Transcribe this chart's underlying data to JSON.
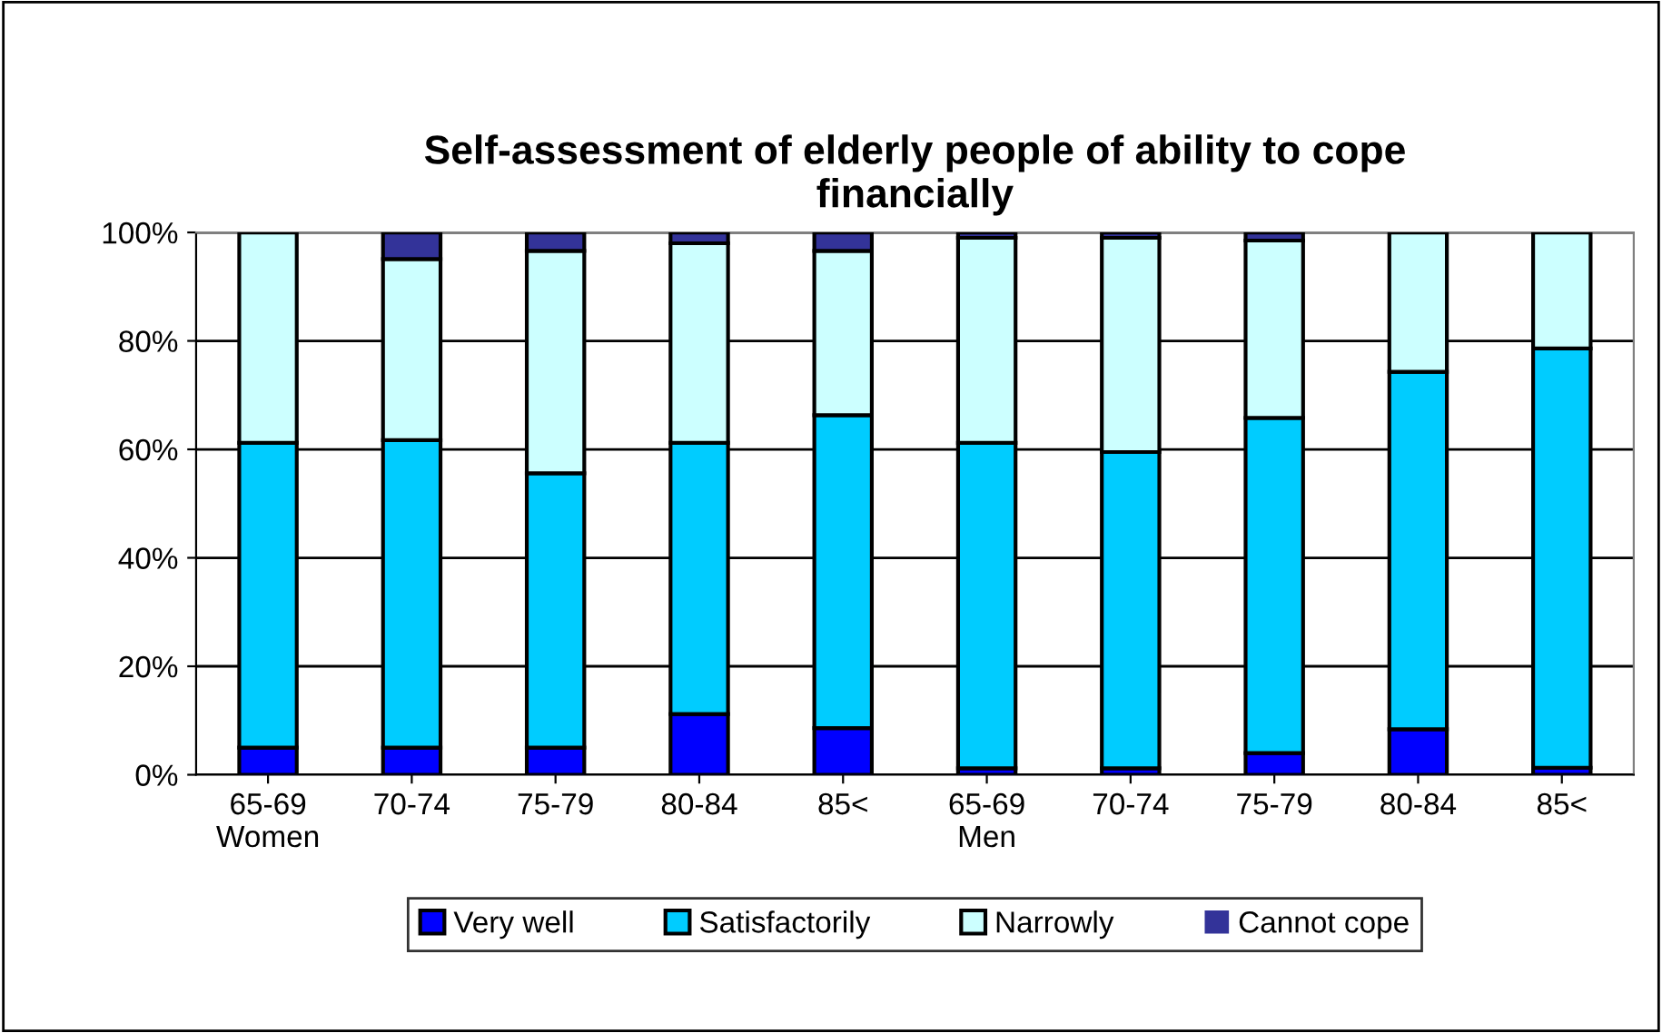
{
  "chart_data": {
    "type": "bar",
    "stacked": true,
    "title": "Self-assessment of elderly people of ability to cope\nfinancially",
    "categories": [
      "65-69\nWomen",
      "70-74",
      "75-79",
      "80-84",
      "85<",
      "65-69\nMen",
      "70-74",
      "75-79",
      "80-84",
      "85<"
    ],
    "series": [
      {
        "name": "Very well",
        "color": "#0000ff",
        "values": [
          5.0,
          5.0,
          5.0,
          11.2,
          8.6,
          1.2,
          1.2,
          4.0,
          8.4,
          1.3
        ]
      },
      {
        "name": "Satisfactorily",
        "color": "#00ccff",
        "values": [
          56.2,
          56.7,
          50.6,
          50.0,
          57.7,
          60.0,
          58.3,
          61.8,
          65.9,
          77.3
        ]
      },
      {
        "name": "Narrowly",
        "color": "#ccffff",
        "values": [
          38.8,
          33.4,
          41.0,
          36.8,
          30.3,
          37.8,
          39.5,
          32.7,
          25.7,
          21.4
        ]
      },
      {
        "name": "Cannot cope",
        "color": "#333399",
        "values": [
          0,
          4.9,
          3.4,
          2.0,
          3.4,
          1.0,
          1.0,
          1.5,
          0,
          0
        ]
      }
    ],
    "ylim": [
      0,
      100
    ],
    "yticks": [
      {
        "value": 0,
        "label": "0%"
      },
      {
        "value": 20,
        "label": "20%"
      },
      {
        "value": 40,
        "label": "40%"
      },
      {
        "value": 60,
        "label": "60%"
      },
      {
        "value": 80,
        "label": "80%"
      },
      {
        "value": 100,
        "label": "100%"
      }
    ],
    "grid": "y",
    "legend": "bottom"
  }
}
